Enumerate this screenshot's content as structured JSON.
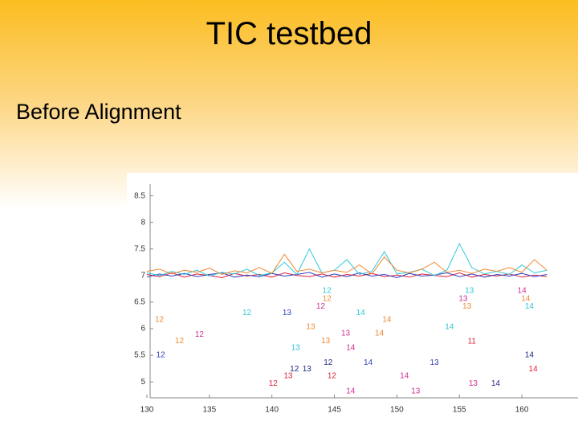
{
  "slide": {
    "title": "TIC testbed",
    "subtitle": "Before Alignment"
  },
  "chart_data": {
    "type": "line",
    "x": [
      130,
      131,
      132,
      133,
      134,
      135,
      136,
      137,
      138,
      139,
      140,
      141,
      142,
      143,
      144,
      145,
      146,
      147,
      148,
      149,
      150,
      151,
      152,
      153,
      154,
      155,
      156,
      157,
      158,
      159,
      160,
      161,
      162
    ],
    "series": [
      {
        "color": "#e0203a",
        "values": [
          7.02,
          6.98,
          7.05,
          6.97,
          7.03,
          7.0,
          6.96,
          7.04,
          6.99,
          7.02,
          6.97,
          7.05,
          7.0,
          6.98,
          7.03,
          6.97,
          7.02,
          6.99,
          7.04,
          6.98,
          7.01,
          6.97,
          7.03,
          7.0,
          6.98,
          7.05,
          6.97,
          7.02,
          6.99,
          7.03,
          6.97,
          7.01,
          6.98
        ]
      },
      {
        "color": "#3040c0",
        "values": [
          6.97,
          7.03,
          6.99,
          7.04,
          6.98,
          7.02,
          7.05,
          6.97,
          7.01,
          6.98,
          7.04,
          6.99,
          7.02,
          7.06,
          6.97,
          7.03,
          6.98,
          7.05,
          6.99,
          7.02,
          6.96,
          7.04,
          6.99,
          7.01,
          7.05,
          6.98,
          7.03,
          6.97,
          7.02,
          6.99,
          7.04,
          6.98,
          7.02
        ]
      },
      {
        "color": "#30c8d8",
        "values": [
          7.05,
          7.0,
          7.08,
          7.02,
          7.1,
          6.99,
          7.06,
          7.03,
          7.12,
          7.0,
          7.05,
          7.25,
          7.02,
          7.5,
          7.05,
          7.1,
          7.3,
          7.02,
          7.08,
          7.45,
          7.03,
          7.06,
          7.12,
          7.0,
          7.1,
          7.6,
          7.15,
          7.03,
          7.08,
          7.02,
          7.2,
          7.05,
          7.1
        ]
      },
      {
        "color": "#f08a30",
        "values": [
          7.08,
          7.12,
          7.03,
          7.1,
          7.06,
          7.14,
          7.02,
          7.09,
          7.05,
          7.15,
          7.04,
          7.4,
          7.08,
          7.12,
          7.05,
          7.1,
          7.06,
          7.2,
          7.03,
          7.35,
          7.1,
          7.05,
          7.12,
          7.25,
          7.06,
          7.1,
          7.04,
          7.12,
          7.08,
          7.15,
          7.06,
          7.3,
          7.1
        ]
      }
    ],
    "xlim": [
      130,
      162
    ],
    "ylim": [
      4.7,
      8.6
    ],
    "xticks": [
      130,
      135,
      140,
      145,
      150,
      155,
      160
    ],
    "yticks": [
      5,
      5.5,
      6,
      6.5,
      7,
      7.5,
      8,
      8.5
    ],
    "annotations": [
      {
        "text": "12",
        "x": 144.4,
        "y": 6.71,
        "color": "#30c8d8"
      },
      {
        "text": "12",
        "x": 144.4,
        "y": 6.56,
        "color": "#f08a30"
      },
      {
        "text": "12",
        "x": 143.9,
        "y": 6.42,
        "color": "#d03090"
      },
      {
        "text": "12",
        "x": 138.0,
        "y": 6.3,
        "color": "#30c8d8"
      },
      {
        "text": "13",
        "x": 141.2,
        "y": 6.3,
        "color": "#3040c0"
      },
      {
        "text": "14",
        "x": 147.1,
        "y": 6.3,
        "color": "#30c8d8"
      },
      {
        "text": "14",
        "x": 149.2,
        "y": 6.17,
        "color": "#f08a30"
      },
      {
        "text": "12",
        "x": 131.0,
        "y": 6.17,
        "color": "#f08a30"
      },
      {
        "text": "13",
        "x": 143.1,
        "y": 6.03,
        "color": "#f08a30"
      },
      {
        "text": "13",
        "x": 145.9,
        "y": 5.91,
        "color": "#d03090"
      },
      {
        "text": "14",
        "x": 148.6,
        "y": 5.91,
        "color": "#f08a30"
      },
      {
        "text": "14",
        "x": 154.2,
        "y": 6.03,
        "color": "#30c8d8"
      },
      {
        "text": "12",
        "x": 134.2,
        "y": 5.89,
        "color": "#d03090"
      },
      {
        "text": "12",
        "x": 132.6,
        "y": 5.77,
        "color": "#f08a30"
      },
      {
        "text": "13",
        "x": 144.3,
        "y": 5.77,
        "color": "#f08a30"
      },
      {
        "text": "13",
        "x": 141.9,
        "y": 5.64,
        "color": "#30c8d8"
      },
      {
        "text": "14",
        "x": 146.3,
        "y": 5.64,
        "color": "#d03090"
      },
      {
        "text": "12",
        "x": 131.1,
        "y": 5.5,
        "color": "#3040c0"
      },
      {
        "text": "12",
        "x": 144.5,
        "y": 5.36,
        "color": "#202880"
      },
      {
        "text": "14",
        "x": 147.7,
        "y": 5.36,
        "color": "#3040c0"
      },
      {
        "text": "13",
        "x": 153.0,
        "y": 5.36,
        "color": "#3040c0"
      },
      {
        "text": "14",
        "x": 160.6,
        "y": 5.5,
        "color": "#202880"
      },
      {
        "text": "13",
        "x": 155.8,
        "y": 6.71,
        "color": "#30c8d8"
      },
      {
        "text": "13",
        "x": 155.3,
        "y": 6.56,
        "color": "#d03090"
      },
      {
        "text": "13",
        "x": 155.6,
        "y": 6.42,
        "color": "#f08a30"
      },
      {
        "text": "14",
        "x": 160.0,
        "y": 6.71,
        "color": "#d03090"
      },
      {
        "text": "14",
        "x": 160.3,
        "y": 6.56,
        "color": "#f08a30"
      },
      {
        "text": "14",
        "x": 160.6,
        "y": 6.42,
        "color": "#30c8d8"
      },
      {
        "text": "11",
        "x": 156.0,
        "y": 5.76,
        "color": "#e0203a"
      },
      {
        "text": "12",
        "x": 141.8,
        "y": 5.24,
        "color": "#202880"
      },
      {
        "text": "13",
        "x": 142.8,
        "y": 5.24,
        "color": "#202880"
      },
      {
        "text": "13",
        "x": 141.3,
        "y": 5.11,
        "color": "#e0203a"
      },
      {
        "text": "12",
        "x": 144.8,
        "y": 5.11,
        "color": "#e0203a"
      },
      {
        "text": "14",
        "x": 150.6,
        "y": 5.11,
        "color": "#d03090"
      },
      {
        "text": "14",
        "x": 160.9,
        "y": 5.24,
        "color": "#e0203a"
      },
      {
        "text": "12",
        "x": 140.1,
        "y": 4.97,
        "color": "#e0203a"
      },
      {
        "text": "13",
        "x": 156.1,
        "y": 4.97,
        "color": "#d03090"
      },
      {
        "text": "14",
        "x": 157.9,
        "y": 4.97,
        "color": "#202880"
      },
      {
        "text": "14",
        "x": 146.3,
        "y": 4.82,
        "color": "#d03090"
      },
      {
        "text": "13",
        "x": 151.5,
        "y": 4.82,
        "color": "#d03090"
      }
    ]
  }
}
